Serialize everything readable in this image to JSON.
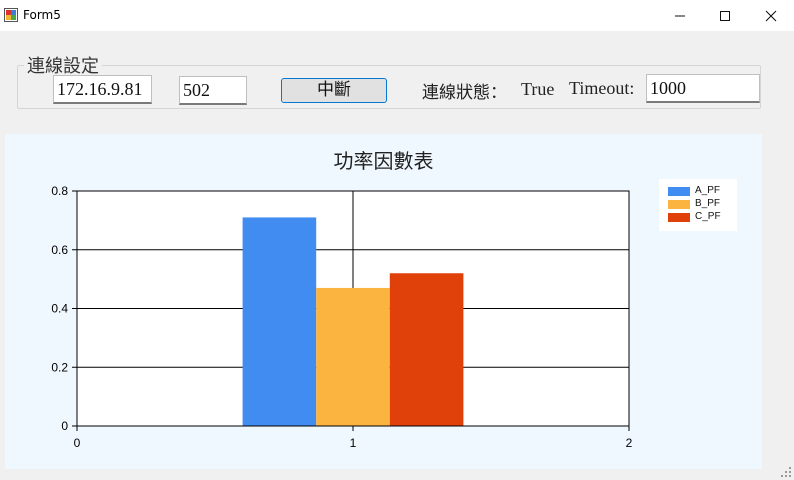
{
  "window": {
    "title": "Form5",
    "controls": [
      "minimize-icon",
      "maximize-icon",
      "close-icon"
    ]
  },
  "connection": {
    "group_label": "連線設定",
    "ip": "172.16.9.81",
    "port": "502",
    "disconnect_label": "中斷",
    "status_label": "連線狀態：",
    "status_value": "True",
    "timeout_label": "Timeout:",
    "timeout_value": "1000"
  },
  "chart_data": {
    "type": "bar",
    "title": "功率因數表",
    "xlabel": "",
    "ylabel": "",
    "xlim": [
      0,
      2
    ],
    "ylim": [
      0,
      0.8
    ],
    "x_ticks": [
      "0",
      "1",
      "2"
    ],
    "y_ticks": [
      "0",
      "0.2",
      "0.4",
      "0.6",
      "0.8"
    ],
    "categories": [
      "1"
    ],
    "series": [
      {
        "name": "A_PF",
        "values": [
          0.71
        ],
        "color": "#418cf0"
      },
      {
        "name": "B_PF",
        "values": [
          0.47
        ],
        "color": "#fcb441"
      },
      {
        "name": "C_PF",
        "values": [
          0.52
        ],
        "color": "#e0400a"
      }
    ],
    "grid": true,
    "legend_position": "top-right"
  }
}
